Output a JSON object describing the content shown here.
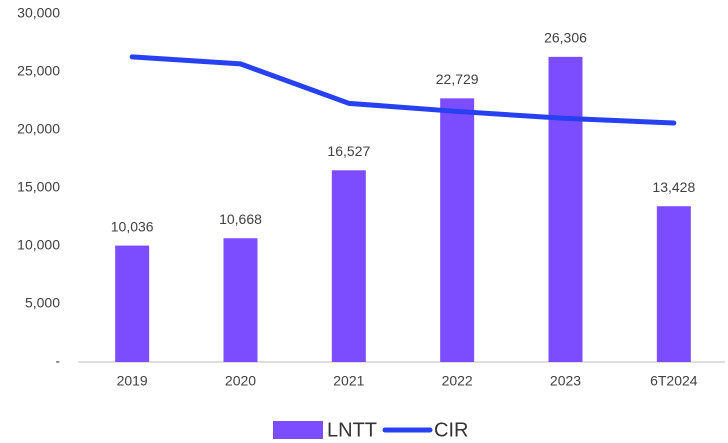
{
  "chart_data": {
    "type": "bar",
    "categories": [
      "2019",
      "2020",
      "2021",
      "2022",
      "2023",
      "6T2024"
    ],
    "series": [
      {
        "name": "LNTT",
        "type": "bar",
        "color": "#7c4dff",
        "values": [
          10036,
          10668,
          16527,
          22729,
          26306,
          13428
        ],
        "value_labels": [
          "10,036",
          "10,668",
          "16,527",
          "22,729",
          "26,306",
          "13,428"
        ]
      },
      {
        "name": "CIR",
        "type": "line",
        "color": "#2640f2",
        "values": [
          26300,
          25700,
          22300,
          21600,
          21000,
          20600
        ]
      }
    ],
    "ylim": [
      0,
      30000
    ],
    "yticks": [
      {
        "value": 0,
        "label": "-"
      },
      {
        "value": 5000,
        "label": "5,000"
      },
      {
        "value": 10000,
        "label": "10,000"
      },
      {
        "value": 15000,
        "label": "15,000"
      },
      {
        "value": 20000,
        "label": "20,000"
      },
      {
        "value": 25000,
        "label": "25,000"
      },
      {
        "value": 30000,
        "label": "30,000"
      }
    ],
    "grid": false,
    "legend": "bottom"
  }
}
